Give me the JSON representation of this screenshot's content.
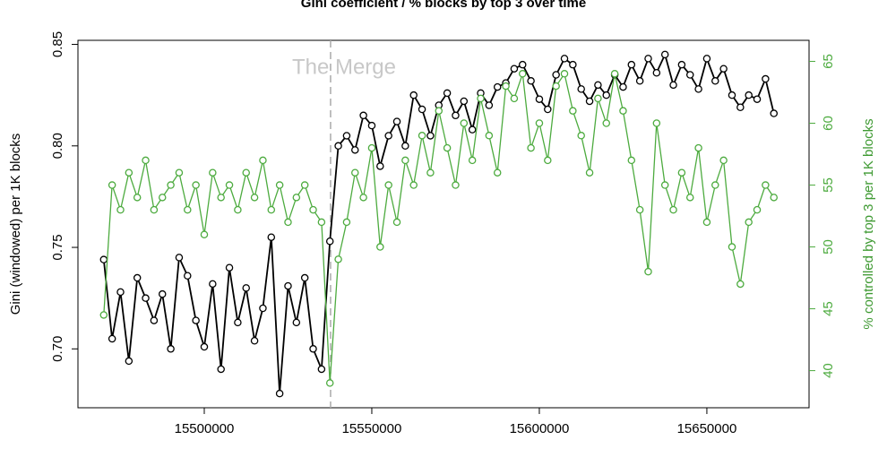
{
  "chart_data": {
    "type": "line",
    "title": "Gini coefficient / % blocks by top 3 over time",
    "y_label": "Gini (windowed) per 1K blocks",
    "y2_label": "% controlled by top 3 per 1K blocks",
    "xlim": [
      15462300,
      15680500
    ],
    "xticks": [
      15500000,
      15550000,
      15600000,
      15650000
    ],
    "ylim": [
      0.671,
      0.852
    ],
    "yticks": [
      {
        "value": 0.7,
        "label": "0.70"
      },
      0.75,
      {
        "value": 0.8,
        "label": "0.80"
      },
      0.85
    ],
    "y2lim": [
      37.0,
      66.7
    ],
    "y2ticks": [
      40,
      45,
      50,
      55,
      60,
      65
    ],
    "annotations": [
      {
        "text": "The Merge",
        "x": 15537700
      }
    ],
    "x": [
      15470000,
      15472500,
      15475000,
      15477500,
      15480000,
      15482500,
      15485000,
      15487500,
      15490000,
      15492500,
      15495000,
      15497500,
      15500000,
      15502500,
      15505000,
      15507500,
      15510000,
      15512500,
      15515000,
      15517500,
      15520000,
      15522500,
      15525000,
      15527500,
      15530000,
      15532500,
      15535000,
      15537500,
      15540000,
      15542500,
      15545000,
      15547500,
      15550000,
      15552500,
      15555000,
      15557500,
      15560000,
      15562500,
      15565000,
      15567500,
      15570000,
      15572500,
      15575000,
      15577500,
      15580000,
      15582500,
      15585000,
      15587500,
      15590000,
      15592500,
      15595000,
      15597500,
      15600000,
      15602500,
      15605000,
      15607500,
      15610000,
      15612500,
      15615000,
      15617500,
      15620000,
      15622500,
      15625000,
      15627500,
      15630000,
      15632500,
      15635000,
      15637500,
      15640000,
      15642500,
      15645000,
      15647500,
      15650000,
      15652500,
      15655000,
      15657500,
      15660000,
      15662500,
      15665000,
      15667500,
      15670000
    ],
    "series": [
      {
        "name": "Gini",
        "color": "#000000",
        "values": [
          0.744,
          0.705,
          0.728,
          0.694,
          0.735,
          0.725,
          0.714,
          0.727,
          0.7,
          0.745,
          0.736,
          0.714,
          0.701,
          0.732,
          0.69,
          0.74,
          0.713,
          0.73,
          0.704,
          0.72,
          0.755,
          0.678,
          0.731,
          0.713,
          0.735,
          0.7,
          0.69,
          0.753,
          0.8,
          0.805,
          0.798,
          0.815,
          0.81,
          0.79,
          0.805,
          0.812,
          0.8,
          0.825,
          0.818,
          0.805,
          0.82,
          0.826,
          0.815,
          0.822,
          0.808,
          0.826,
          0.82,
          0.829,
          0.831,
          0.838,
          0.84,
          0.832,
          0.823,
          0.818,
          0.835,
          0.843,
          0.84,
          0.828,
          0.822,
          0.83,
          0.825,
          0.835,
          0.829,
          0.84,
          0.832,
          0.843,
          0.836,
          0.845,
          0.83,
          0.84,
          0.835,
          0.828,
          0.843,
          0.832,
          0.838,
          0.825,
          0.819,
          0.825,
          0.823,
          0.833,
          0.816
        ]
      },
      {
        "name": "% top 3",
        "color": "#4dab3f",
        "axis": "y2",
        "values": [
          44.5,
          55,
          53,
          56,
          54,
          57,
          53,
          54,
          55,
          56,
          53,
          55,
          51,
          56,
          54,
          55,
          53,
          56,
          54,
          57,
          53,
          55,
          52,
          54,
          55,
          53,
          52,
          39,
          49,
          52,
          56,
          54,
          58,
          50,
          55,
          52,
          57,
          55,
          59,
          56,
          61,
          58,
          55,
          60,
          57,
          62,
          59,
          56,
          63,
          62,
          64,
          58,
          60,
          57,
          63,
          64,
          61,
          59,
          56,
          62,
          60,
          64,
          61,
          57,
          53,
          48,
          60,
          55,
          53,
          56,
          54,
          58,
          52,
          55,
          57,
          50,
          47,
          52,
          53,
          55,
          54
        ]
      }
    ]
  }
}
